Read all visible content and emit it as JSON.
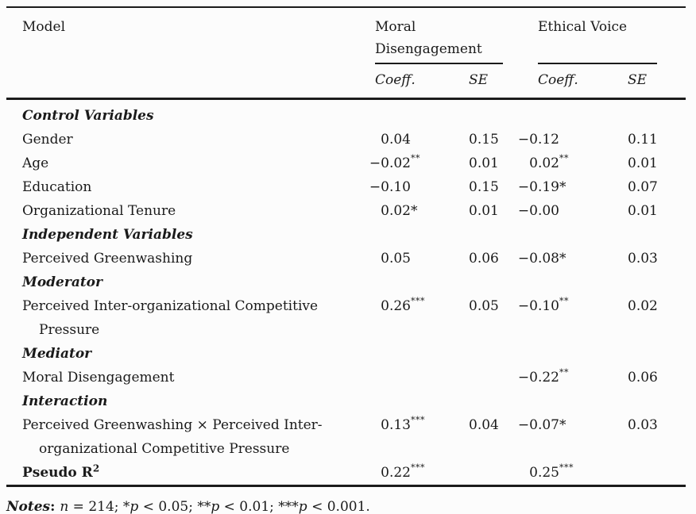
{
  "page": {
    "background_color": "#fcfcfc",
    "text_color": "#1a1a1a",
    "rule_color": "#1b1b1b"
  },
  "table": {
    "header": {
      "model": "Model",
      "groups": [
        {
          "label": "Moral\nDisengagement"
        },
        {
          "label": "Ethical Voice"
        }
      ],
      "subheaders": [
        "Coeff.",
        "SE",
        "Coeff.",
        "SE"
      ]
    },
    "rows": [
      {
        "label": "Control Variables",
        "style": "section",
        "cells": [
          null,
          null,
          null,
          null
        ]
      },
      {
        "label": "Gender",
        "style": "normal",
        "cells": [
          {
            "v": "0.04"
          },
          {
            "v": "0.15"
          },
          {
            "v": "−0.12"
          },
          {
            "v": "0.11"
          }
        ]
      },
      {
        "label": "Age",
        "style": "normal",
        "cells": [
          {
            "v": "−0.02",
            "s": "**",
            "sup": true
          },
          {
            "v": "0.01"
          },
          {
            "v": "0.02",
            "s": "**",
            "sup": true
          },
          {
            "v": "0.01"
          }
        ]
      },
      {
        "label": "Education",
        "style": "normal",
        "cells": [
          {
            "v": "−0.10"
          },
          {
            "v": "0.15"
          },
          {
            "v": "−0.19",
            "s": "*",
            "sup": false
          },
          {
            "v": "0.07"
          }
        ]
      },
      {
        "label": "Organizational Tenure",
        "style": "normal",
        "cells": [
          {
            "v": "0.02",
            "s": "*",
            "sup": false
          },
          {
            "v": "0.01"
          },
          {
            "v": "−0.00"
          },
          {
            "v": "0.01"
          }
        ]
      },
      {
        "label": "Independent Variables",
        "style": "section",
        "cells": [
          null,
          null,
          null,
          null
        ]
      },
      {
        "label": "Perceived Greenwashing",
        "style": "normal",
        "cells": [
          {
            "v": "0.05"
          },
          {
            "v": "0.06"
          },
          {
            "v": "−0.08",
            "s": "*",
            "sup": false
          },
          {
            "v": "0.03"
          }
        ]
      },
      {
        "label": "Moderator",
        "style": "section",
        "cells": [
          null,
          null,
          null,
          null
        ]
      },
      {
        "label": "Perceived Inter-organizational Competitive\nPressure",
        "style": "normal",
        "cells": [
          {
            "v": "0.26",
            "s": "***",
            "sup": true
          },
          {
            "v": "0.05"
          },
          {
            "v": "−0.10",
            "s": "**",
            "sup": true
          },
          {
            "v": "0.02"
          }
        ]
      },
      {
        "label": "Mediator",
        "style": "section",
        "cells": [
          null,
          null,
          null,
          null
        ]
      },
      {
        "label": "Moral Disengagement",
        "style": "normal",
        "cells": [
          null,
          null,
          {
            "v": "−0.22",
            "s": "**",
            "sup": true
          },
          {
            "v": "0.06"
          }
        ]
      },
      {
        "label": "Interaction",
        "style": "section",
        "cells": [
          null,
          null,
          null,
          null
        ]
      },
      {
        "label": "Perceived Greenwashing × Perceived Inter-\norganizational Competitive Pressure",
        "style": "normal",
        "cells": [
          {
            "v": "0.13",
            "s": "***",
            "sup": true
          },
          {
            "v": "0.04"
          },
          {
            "v": "−0.07",
            "s": "*",
            "sup": false
          },
          {
            "v": "0.03"
          }
        ]
      },
      {
        "label": "Pseudo R",
        "label_sup": "2",
        "style": "bold",
        "cells": [
          {
            "v": "0.22",
            "s": "***",
            "sup": true
          },
          null,
          {
            "v": "0.25",
            "s": "***",
            "sup": true
          },
          null
        ]
      }
    ]
  },
  "notes": {
    "segments": [
      {
        "t": "Notes",
        "b": true,
        "i": true
      },
      {
        "t": ": ",
        "b": true
      },
      {
        "t": "n",
        "i": true
      },
      {
        "t": " = 214; *"
      },
      {
        "t": "p",
        "i": true
      },
      {
        "t": " < 0.05; **"
      },
      {
        "t": "p",
        "i": true
      },
      {
        "t": " < 0.01; ***"
      },
      {
        "t": "p",
        "i": true
      },
      {
        "t": " < 0.001."
      }
    ]
  }
}
